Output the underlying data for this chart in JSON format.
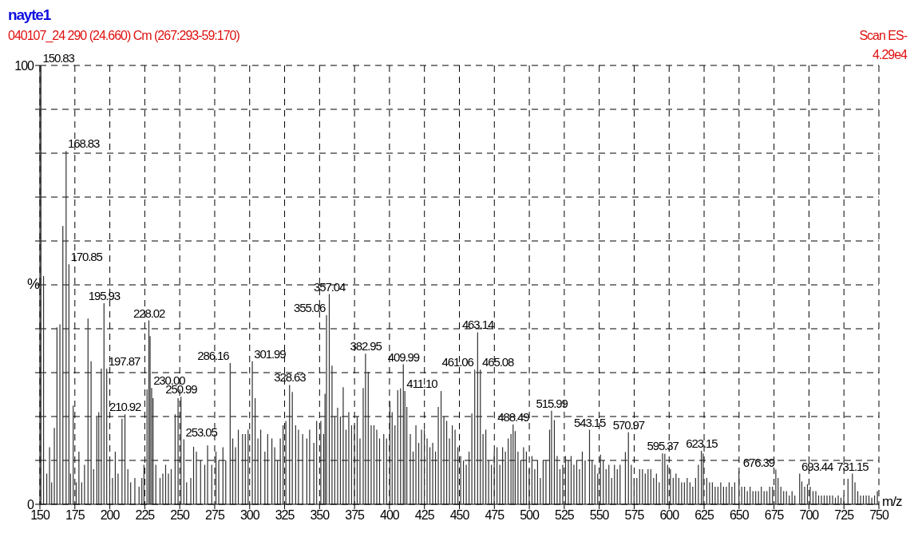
{
  "chart_data": {
    "type": "bar",
    "title": "nayte1",
    "subtitle": "040107_24 290 (24.660) Cm (267:293-59:170)",
    "xlabel": "m/z",
    "ylabel": "%",
    "color": "#303030",
    "grid": true,
    "xlim": [
      150,
      750
    ],
    "xticks": [
      150,
      175,
      200,
      225,
      250,
      275,
      300,
      325,
      350,
      375,
      400,
      425,
      450,
      475,
      500,
      525,
      550,
      575,
      600,
      625,
      650,
      675,
      700,
      725,
      750
    ],
    "ylim": [
      0,
      100
    ],
    "yticks": [
      0,
      {
        "value": 10,
        "label": null
      },
      {
        "value": 20,
        "label": null
      },
      {
        "value": 30,
        "label": null
      },
      {
        "value": 40,
        "label": null
      },
      {
        "value": 50,
        "label": null
      },
      {
        "value": 60,
        "label": null
      },
      {
        "value": 70,
        "label": null
      },
      {
        "value": 80,
        "label": null
      },
      {
        "value": 90,
        "label": null
      },
      100
    ],
    "x": [
      150.83,
      152.7,
      155,
      157,
      158.5,
      160.4,
      162.3,
      164.4,
      166.5,
      168.83,
      170.85,
      172,
      173.9,
      176,
      178,
      180,
      182,
      184.5,
      186.7,
      188.5,
      190.8,
      192.2,
      194,
      195.93,
      197.87,
      200,
      202,
      204,
      206,
      208.8,
      210.92,
      213,
      215,
      218,
      221,
      223,
      224.5,
      226.7,
      228.02,
      228.9,
      230.0,
      231,
      233,
      236,
      238,
      240,
      242,
      244,
      246.8,
      248.9,
      250.99,
      253.05,
      255,
      258,
      260,
      262,
      265,
      268,
      270,
      273,
      276,
      278,
      281,
      283,
      286.16,
      288,
      290,
      292,
      295,
      297,
      299,
      301.99,
      304,
      306,
      308,
      311,
      313,
      316,
      318,
      320,
      322,
      324,
      326,
      328.63,
      330.6,
      333,
      335,
      338,
      341,
      343,
      346,
      348,
      351,
      353,
      354,
      355.06,
      357.04,
      359,
      361,
      363,
      365,
      367,
      369,
      371,
      373,
      375,
      377,
      379,
      381.3,
      382.95,
      384.9,
      387,
      389,
      391,
      393,
      396,
      398,
      400.4,
      402,
      404,
      406,
      408,
      409.99,
      411.1,
      412.5,
      415,
      417,
      419,
      421,
      423,
      425,
      427,
      429,
      431,
      433,
      435,
      437,
      439,
      441,
      443,
      445,
      447,
      449,
      451,
      453,
      455,
      457,
      459,
      461.06,
      463.14,
      465.08,
      467,
      469,
      471,
      473,
      475,
      477,
      479,
      481,
      483,
      485,
      487,
      488.49,
      490,
      492,
      494,
      496,
      498,
      500,
      502,
      504,
      506,
      508,
      510,
      512,
      514.6,
      515.99,
      518,
      520,
      522,
      524,
      526,
      528,
      530,
      532,
      534,
      536,
      538,
      540,
      543.15,
      545,
      547,
      549,
      551,
      553,
      555,
      557,
      559,
      561,
      563,
      565,
      568.8,
      570.97,
      573,
      575,
      577,
      579,
      581,
      583,
      585,
      587,
      589,
      591,
      593,
      595.37,
      597,
      599,
      601,
      603,
      605,
      607,
      609,
      611,
      613,
      615,
      617,
      619,
      621,
      623.15,
      624.5,
      627,
      629,
      631,
      633,
      635,
      637,
      639,
      641,
      643,
      645,
      647,
      650,
      652,
      654,
      656,
      658,
      660,
      662,
      664,
      666,
      668,
      670,
      672,
      674,
      676.39,
      678,
      680,
      682,
      684,
      686,
      688,
      690,
      693.44,
      695,
      697,
      699,
      701,
      703,
      705,
      707,
      709,
      711,
      713,
      715,
      717,
      719,
      721,
      723,
      725,
      728,
      731.15,
      733,
      735,
      737,
      739,
      741,
      743,
      745,
      747,
      749
    ],
    "values": [
      100,
      52,
      7,
      13,
      5,
      17.4,
      40.3,
      41,
      63.4,
      80.5,
      54.7,
      7,
      22.5,
      5,
      12,
      5,
      9,
      42.3,
      32.6,
      8,
      19.8,
      21,
      30.9,
      45.8,
      30.9,
      10,
      6,
      12,
      7,
      19.5,
      20.5,
      8,
      5,
      6,
      4,
      6,
      9,
      26.2,
      41.9,
      38.3,
      26.5,
      24.2,
      9,
      6,
      7,
      9,
      7,
      8,
      20.5,
      24.2,
      24.5,
      14.8,
      5,
      6,
      13.1,
      12,
      10,
      9,
      13.4,
      9,
      12,
      10,
      13,
      10,
      32.2,
      15,
      13,
      17,
      16,
      16,
      17,
      32.6,
      24.2,
      15,
      17,
      12,
      16,
      15,
      13,
      10,
      15,
      18,
      19,
      27.2,
      25.6,
      18,
      17,
      16,
      15,
      17,
      14,
      19,
      19,
      16,
      25.2,
      43.1,
      47.9,
      31.6,
      20,
      22,
      20,
      26.7,
      17,
      21,
      18,
      18,
      20,
      15,
      26.5,
      34.3,
      30.2,
      18,
      18,
      17,
      15,
      16,
      15,
      23.4,
      21,
      18,
      26,
      26.4,
      31.9,
      25.8,
      22.2,
      16,
      12,
      18,
      14,
      17,
      17,
      15,
      13,
      14,
      12,
      22.2,
      25.8,
      20,
      19,
      15,
      18,
      17,
      13,
      11,
      10,
      9,
      12,
      20.7,
      30.7,
      39.2,
      30.7,
      16,
      17,
      10,
      9,
      12,
      13,
      9,
      13,
      12,
      15,
      16,
      18.2,
      16.7,
      12,
      10,
      13,
      12,
      8,
      11,
      8,
      10,
      6,
      10,
      10,
      17,
      21.3,
      19.2,
      11,
      8,
      9,
      11,
      10,
      11,
      9,
      10,
      8,
      12,
      10,
      17,
      10,
      9,
      7,
      11.3,
      10,
      8,
      9,
      6,
      9,
      8,
      9,
      11.9,
      16.4,
      9,
      6,
      6,
      8,
      8,
      7,
      8,
      8,
      6,
      7,
      5,
      11.6,
      11.5,
      9,
      8,
      6,
      7,
      6,
      5,
      5,
      6,
      5,
      4,
      6,
      9,
      12.2,
      11.6,
      6,
      5,
      5,
      4,
      4,
      5,
      4,
      4,
      5,
      4,
      5,
      7.6,
      4,
      4,
      3,
      4,
      3,
      3,
      3,
      4,
      3,
      3,
      4,
      4,
      7.9,
      6,
      4,
      3,
      3,
      2,
      3,
      2,
      7,
      5.2,
      4,
      4.6,
      4,
      3,
      3,
      2,
      2,
      2,
      2,
      2,
      2,
      1.5,
      2,
      1.5,
      2,
      5.8,
      7,
      5,
      3,
      2,
      2,
      2,
      2,
      1.5,
      2,
      3
    ],
    "annotations": [
      {
        "text": "150.83",
        "x": 150.83,
        "y": 100
      },
      {
        "text": "168.83",
        "x": 168.83,
        "y": 80.5
      },
      {
        "text": "170.85",
        "x": 170.85,
        "y": 54.7
      },
      {
        "text": "195.93",
        "x": 195.93,
        "y": 45.8
      },
      {
        "text": "197.87",
        "x": 197.87,
        "y": 30.9
      },
      {
        "text": "210.92",
        "x": 210.92,
        "y": 20.5
      },
      {
        "text": "228.02",
        "x": 228.02,
        "y": 41.9
      },
      {
        "text": "230.00",
        "x": 230.0,
        "y": 26.5
      },
      {
        "text": "250.99",
        "x": 250.99,
        "y": 24.5
      },
      {
        "text": "253.05",
        "x": 253.05,
        "y": 14.8
      },
      {
        "text": "286.16",
        "x": 286.16,
        "y": 32.2
      },
      {
        "text": "301.99",
        "x": 301.99,
        "y": 32.6
      },
      {
        "text": "328.63",
        "x": 328.63,
        "y": 27.2
      },
      {
        "text": "355.06",
        "x": 355.06,
        "y": 43.1
      },
      {
        "text": "357.04",
        "x": 357.04,
        "y": 47.9
      },
      {
        "text": "382.95",
        "x": 382.95,
        "y": 34.3
      },
      {
        "text": "409.99",
        "x": 409.99,
        "y": 31.9
      },
      {
        "text": "411.10",
        "x": 411.1,
        "y": 25.8
      },
      {
        "text": "461.06",
        "x": 461.06,
        "y": 30.7
      },
      {
        "text": "463.14",
        "x": 463.14,
        "y": 39.2
      },
      {
        "text": "465.08",
        "x": 465.08,
        "y": 30.7
      },
      {
        "text": "488.49",
        "x": 488.49,
        "y": 18.2
      },
      {
        "text": "515.99",
        "x": 515.99,
        "y": 21.3
      },
      {
        "text": "543.15",
        "x": 543.15,
        "y": 17
      },
      {
        "text": "570.97",
        "x": 570.97,
        "y": 16.4
      },
      {
        "text": "595.37",
        "x": 595.37,
        "y": 11.6
      },
      {
        "text": "623.15",
        "x": 623.15,
        "y": 12.2
      },
      {
        "text": "676.39",
        "x": 676.39,
        "y": 7.9
      },
      {
        "text": "693.44",
        "x": 693.44,
        "y": 7
      },
      {
        "text": "731.15",
        "x": 731.15,
        "y": 7
      },
      "Scan ES-",
      "4.29e4"
    ]
  }
}
